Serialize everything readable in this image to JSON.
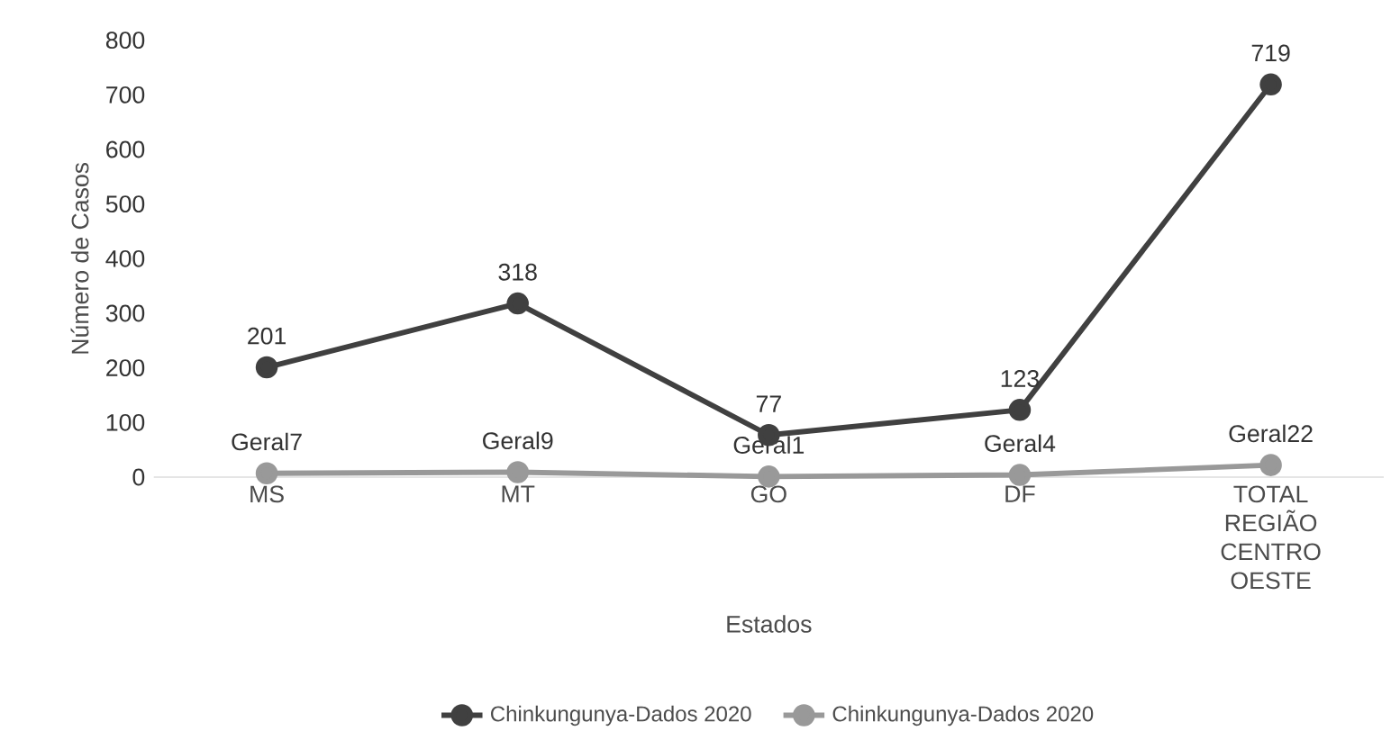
{
  "chart_data": {
    "type": "line",
    "xlabel": "Estados",
    "ylabel": "Número de Casos",
    "categories": [
      "MS",
      "MT",
      "GO",
      "DF",
      "TOTAL REGIÃO CENTRO OESTE"
    ],
    "series": [
      {
        "name": "Chinkungunya-Dados 2020",
        "color": "#404040",
        "values": [
          201,
          318,
          77,
          123,
          719
        ],
        "value_labels": [
          "201",
          "318",
          "77",
          "123",
          "719"
        ]
      },
      {
        "name": "Chinkungunya-Dados 2020",
        "color": "#999999",
        "values": [
          7,
          9,
          1,
          4,
          22
        ],
        "value_labels": [
          "Geral7",
          "Geral9",
          "Geral1",
          "Geral4",
          "Geral22"
        ]
      }
    ],
    "ylim": [
      0,
      800
    ],
    "yticks": [
      0,
      100,
      200,
      300,
      400,
      500,
      600,
      700,
      800
    ],
    "grid": false,
    "legend": "bottom",
    "marker": "circle",
    "line_style": "solid"
  }
}
